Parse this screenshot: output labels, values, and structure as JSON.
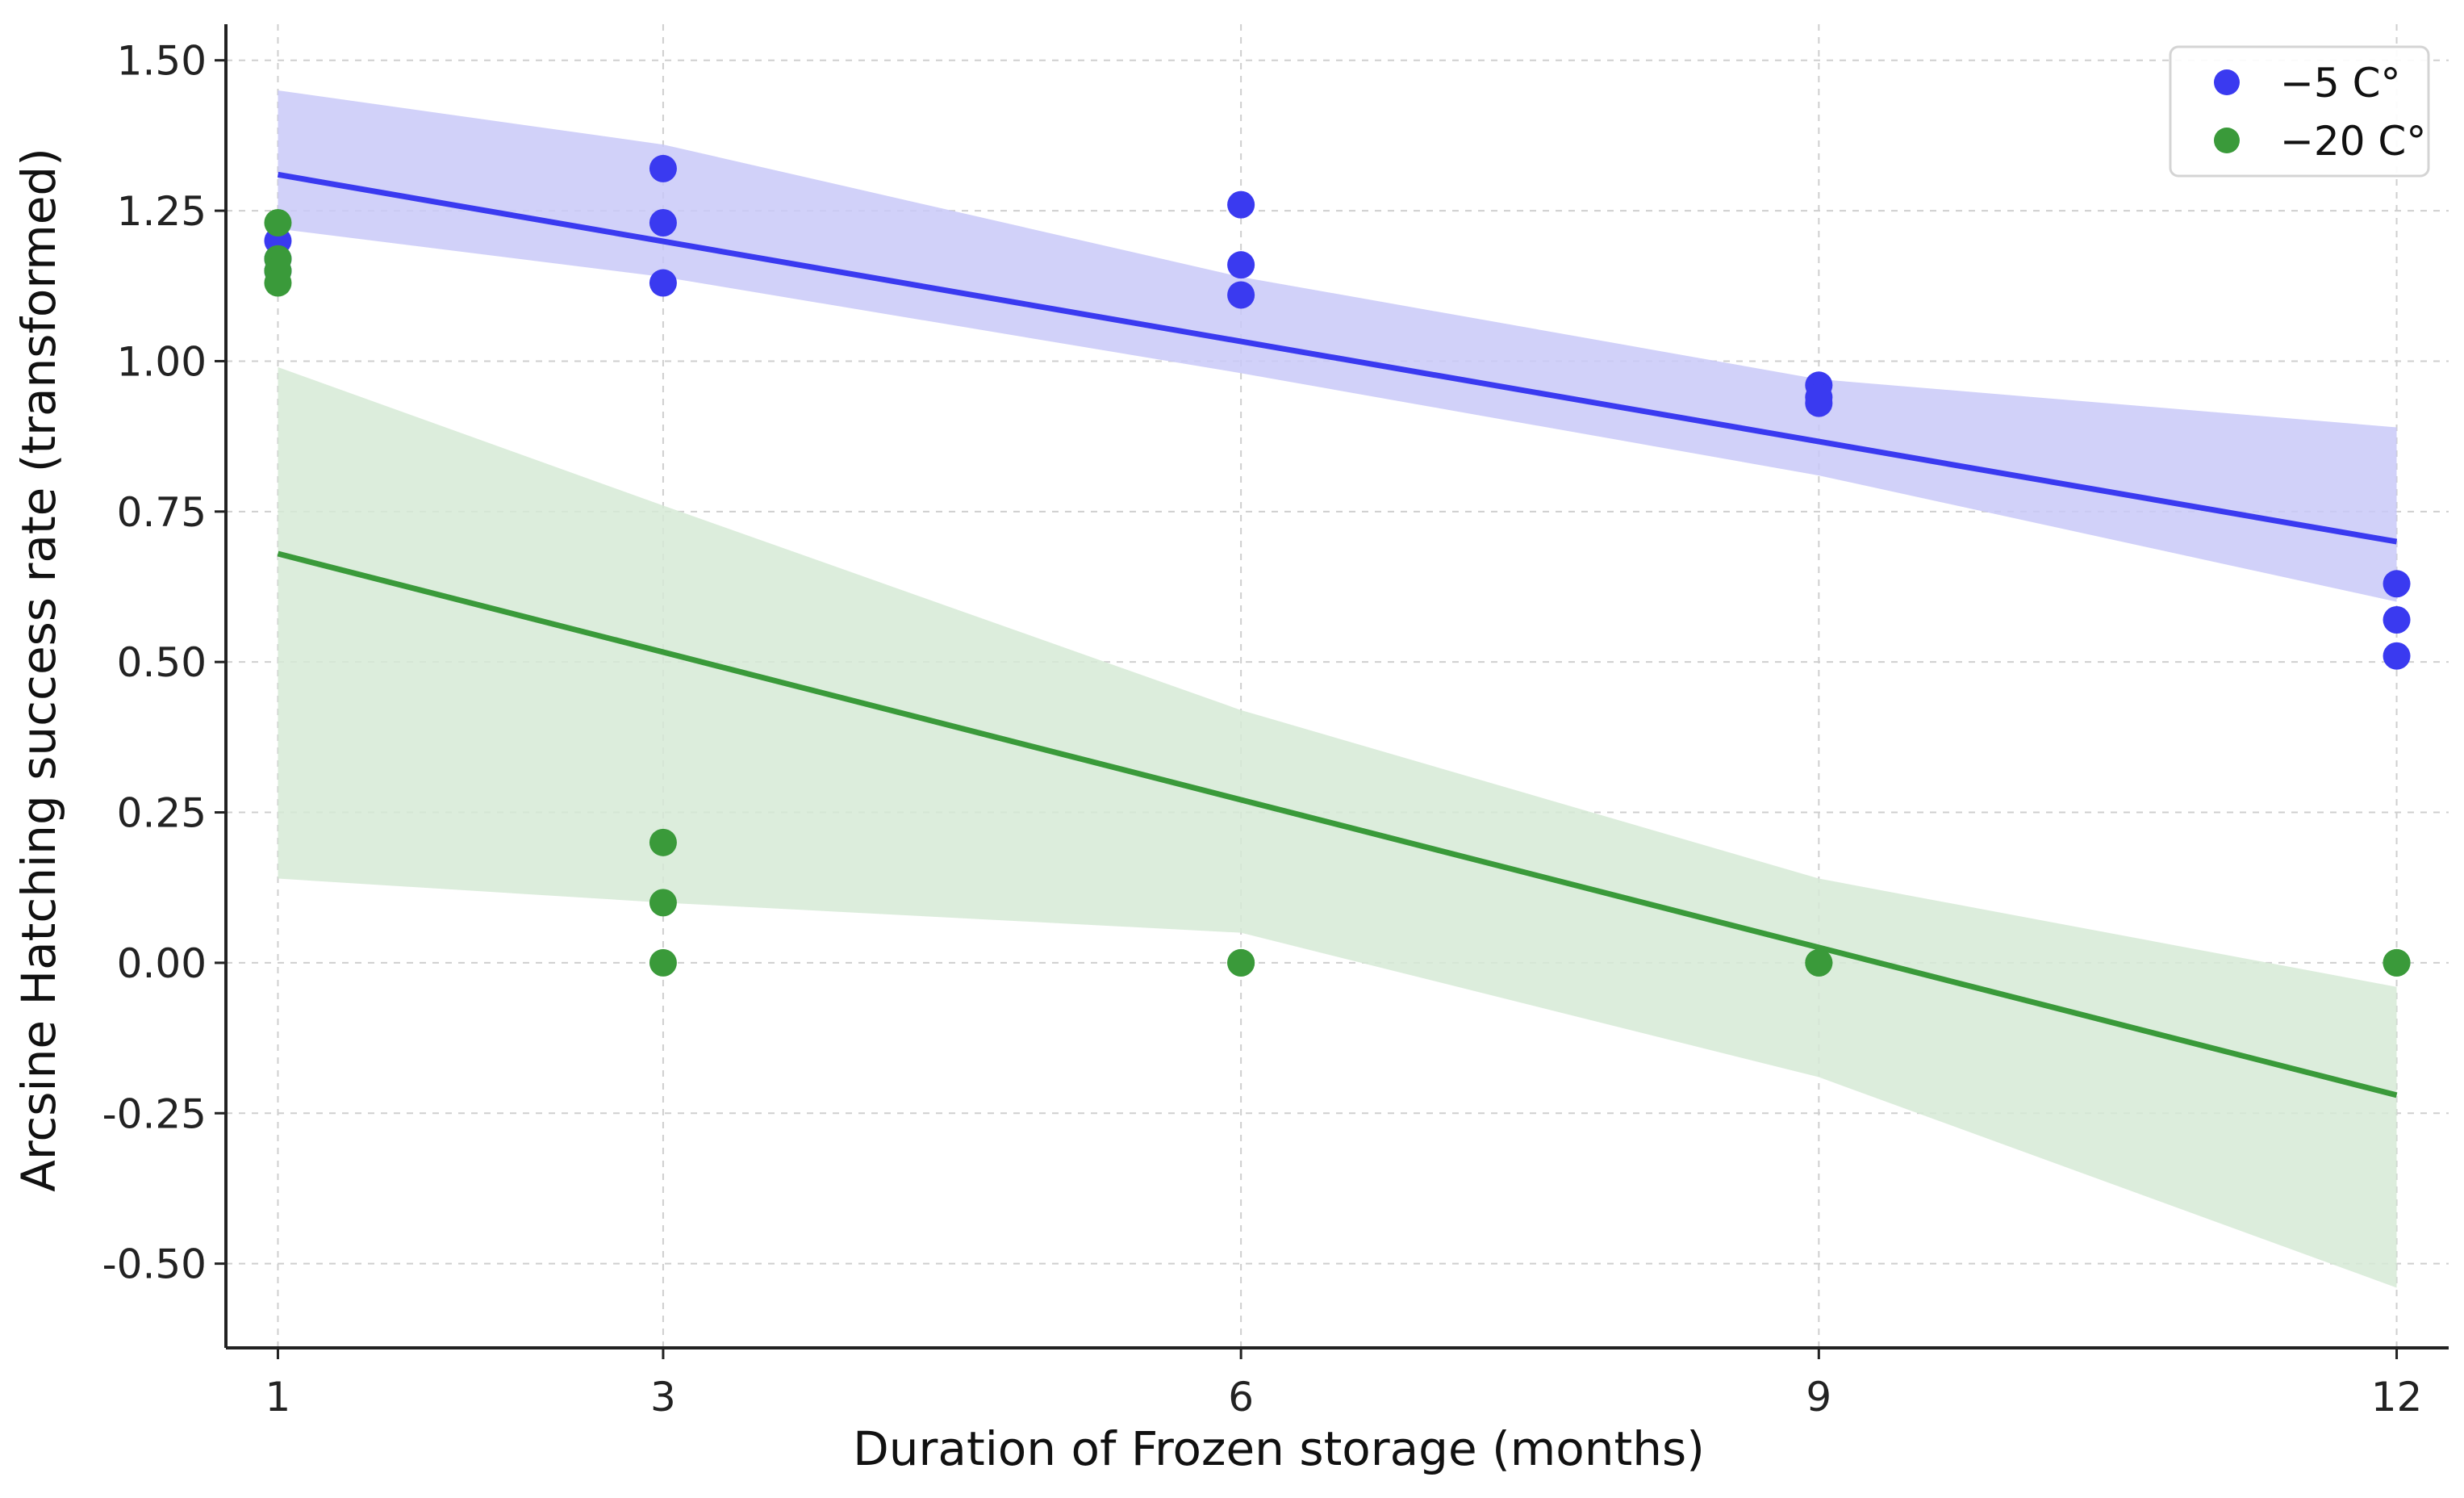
{
  "chart_data": {
    "type": "scatter",
    "title": "",
    "xlabel": "Duration of Frozen storage (months)",
    "ylabel": "Arcsine Hatching success rate (transformed)",
    "xlim": [
      0.73,
      12.27
    ],
    "ylim": [
      -0.64,
      1.56
    ],
    "x_ticks": [
      1,
      3,
      6,
      9,
      12
    ],
    "x_tick_labels": [
      "1",
      "3",
      "6",
      "9",
      "12"
    ],
    "y_ticks": [
      -0.5,
      -0.25,
      0.0,
      0.25,
      0.5,
      0.75,
      1.0,
      1.25,
      1.5
    ],
    "y_tick_labels": [
      "-0.50",
      "-0.25",
      "0.00",
      "0.25",
      "0.50",
      "0.75",
      "1.00",
      "1.25",
      "1.50"
    ],
    "grid": true,
    "legend_position": "top-right",
    "series": [
      {
        "name": "−5 C°",
        "color": "#3a3af0",
        "band_color": "#c9c9f8",
        "points": [
          [
            1,
            1.2
          ],
          [
            1,
            1.17
          ],
          [
            1,
            1.15
          ],
          [
            3,
            1.32
          ],
          [
            3,
            1.23
          ],
          [
            3,
            1.13
          ],
          [
            6,
            1.26
          ],
          [
            6,
            1.16
          ],
          [
            6,
            1.11
          ],
          [
            9,
            0.96
          ],
          [
            9,
            0.94
          ],
          [
            9,
            0.93
          ],
          [
            12,
            0.63
          ],
          [
            12,
            0.57
          ],
          [
            12,
            0.51
          ]
        ],
        "fit": [
          [
            1,
            1.31
          ],
          [
            12,
            0.7
          ]
        ],
        "ci_upper": [
          [
            1,
            1.45
          ],
          [
            3,
            1.36
          ],
          [
            6,
            1.14
          ],
          [
            9,
            0.97
          ],
          [
            12,
            0.89
          ]
        ],
        "ci_lower": [
          [
            1,
            1.22
          ],
          [
            3,
            1.14
          ],
          [
            6,
            0.98
          ],
          [
            9,
            0.81
          ],
          [
            12,
            0.6
          ]
        ]
      },
      {
        "name": "−20 C°",
        "color": "#3a9a3a",
        "band_color": "#d6ead6",
        "points": [
          [
            1,
            1.23
          ],
          [
            1,
            1.17
          ],
          [
            1,
            1.15
          ],
          [
            1,
            1.13
          ],
          [
            3,
            0.2
          ],
          [
            3,
            0.1
          ],
          [
            3,
            0.0
          ],
          [
            6,
            0.0
          ],
          [
            6,
            0.0
          ],
          [
            9,
            0.0
          ],
          [
            9,
            0.0
          ],
          [
            12,
            0.0
          ],
          [
            12,
            0.0
          ]
        ],
        "fit": [
          [
            1,
            0.68
          ],
          [
            12,
            -0.22
          ]
        ],
        "ci_upper": [
          [
            1,
            0.99
          ],
          [
            3,
            0.76
          ],
          [
            6,
            0.42
          ],
          [
            9,
            0.14
          ],
          [
            12,
            -0.04
          ]
        ],
        "ci_lower": [
          [
            1,
            0.14
          ],
          [
            3,
            0.1
          ],
          [
            6,
            0.05
          ],
          [
            9,
            -0.19
          ],
          [
            12,
            -0.54
          ]
        ]
      }
    ]
  }
}
